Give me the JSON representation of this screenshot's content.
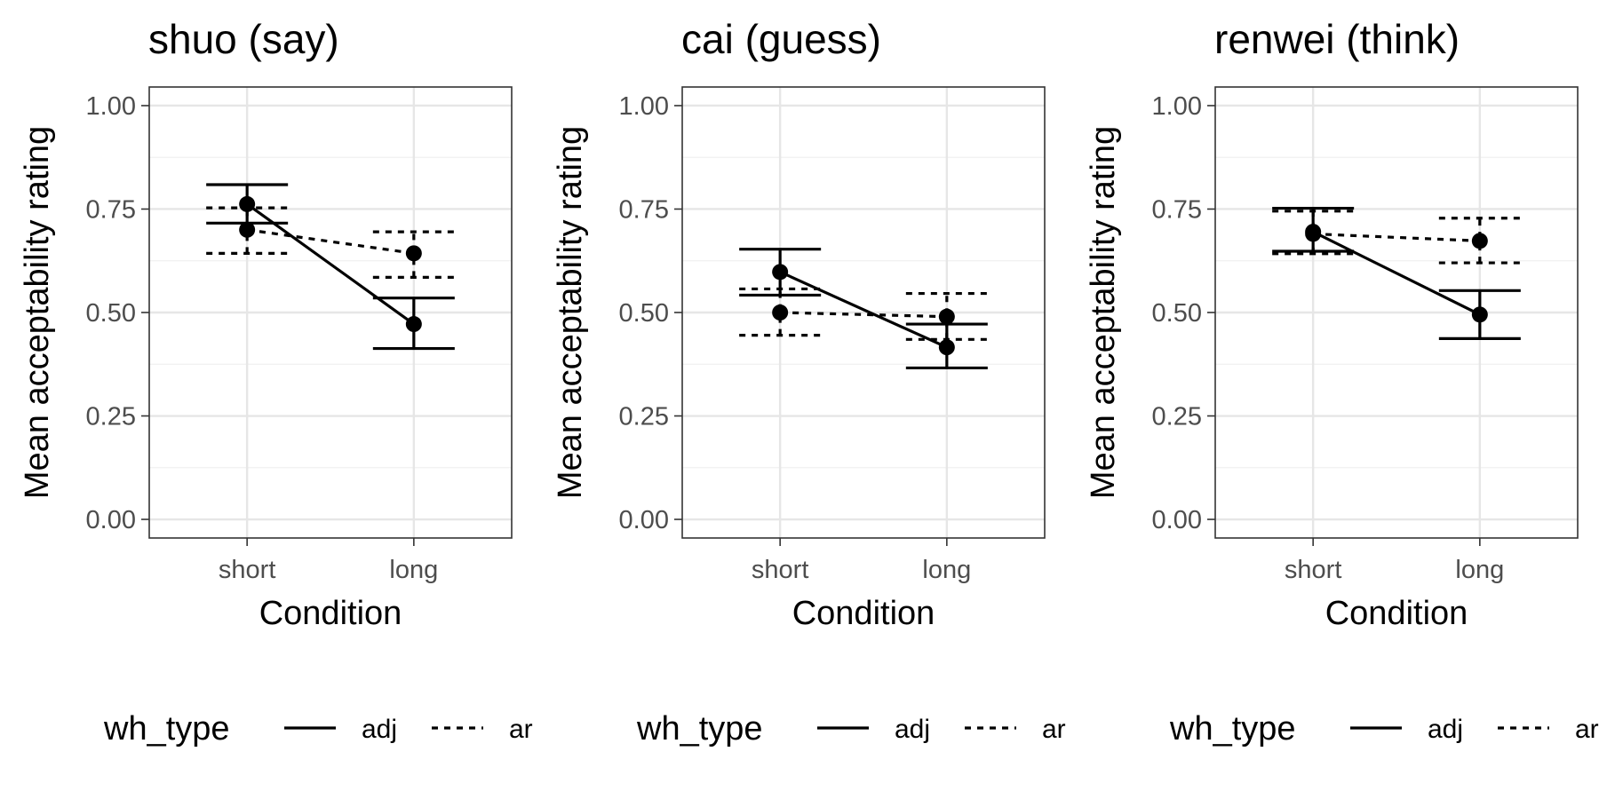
{
  "chart_data": [
    {
      "type": "line",
      "title": "shuo (say)",
      "xlabel": "Condition",
      "ylabel": "Mean acceptability rating",
      "categories": [
        "short",
        "long"
      ],
      "ylim": [
        -0.045,
        1.045
      ],
      "yticks": [
        0.0,
        0.25,
        0.5,
        0.75,
        1.0
      ],
      "ytick_labels": [
        "0.00",
        "0.25",
        "0.50",
        "0.75",
        "1.00"
      ],
      "grid": true,
      "legend": {
        "title": "wh_type",
        "position": "bottom",
        "entries": [
          "adj",
          "ar"
        ]
      },
      "series": [
        {
          "name": "adj",
          "linestyle": "solid",
          "values": [
            0.762,
            0.472
          ],
          "lower": [
            0.716,
            0.413
          ],
          "upper": [
            0.809,
            0.535
          ]
        },
        {
          "name": "ar",
          "linestyle": "dashed",
          "values": [
            0.7,
            0.643
          ],
          "lower": [
            0.643,
            0.585
          ],
          "upper": [
            0.753,
            0.695
          ]
        }
      ]
    },
    {
      "type": "line",
      "title": "cai (guess)",
      "xlabel": "Condition",
      "ylabel": "Mean acceptability rating",
      "categories": [
        "short",
        "long"
      ],
      "ylim": [
        -0.045,
        1.045
      ],
      "yticks": [
        0.0,
        0.25,
        0.5,
        0.75,
        1.0
      ],
      "ytick_labels": [
        "0.00",
        "0.25",
        "0.50",
        "0.75",
        "1.00"
      ],
      "grid": true,
      "legend": {
        "title": "wh_type",
        "position": "bottom",
        "entries": [
          "adj",
          "ar"
        ]
      },
      "series": [
        {
          "name": "adj",
          "linestyle": "solid",
          "values": [
            0.598,
            0.416
          ],
          "lower": [
            0.542,
            0.366
          ],
          "upper": [
            0.653,
            0.472
          ]
        },
        {
          "name": "ar",
          "linestyle": "dashed",
          "values": [
            0.5,
            0.49
          ],
          "lower": [
            0.445,
            0.435
          ],
          "upper": [
            0.557,
            0.546
          ]
        }
      ]
    },
    {
      "type": "line",
      "title": "renwei (think)",
      "xlabel": "Condition",
      "ylabel": "Mean acceptability rating",
      "categories": [
        "short",
        "long"
      ],
      "ylim": [
        -0.045,
        1.045
      ],
      "yticks": [
        0.0,
        0.25,
        0.5,
        0.75,
        1.0
      ],
      "ytick_labels": [
        "0.00",
        "0.25",
        "0.50",
        "0.75",
        "1.00"
      ],
      "grid": true,
      "legend": {
        "title": "wh_type",
        "position": "bottom",
        "entries": [
          "adj",
          "ar"
        ]
      },
      "series": [
        {
          "name": "adj",
          "linestyle": "solid",
          "values": [
            0.695,
            0.495
          ],
          "lower": [
            0.648,
            0.437
          ],
          "upper": [
            0.752,
            0.553
          ]
        },
        {
          "name": "ar",
          "linestyle": "dashed",
          "values": [
            0.69,
            0.673
          ],
          "lower": [
            0.642,
            0.62
          ],
          "upper": [
            0.745,
            0.728
          ]
        }
      ]
    }
  ]
}
